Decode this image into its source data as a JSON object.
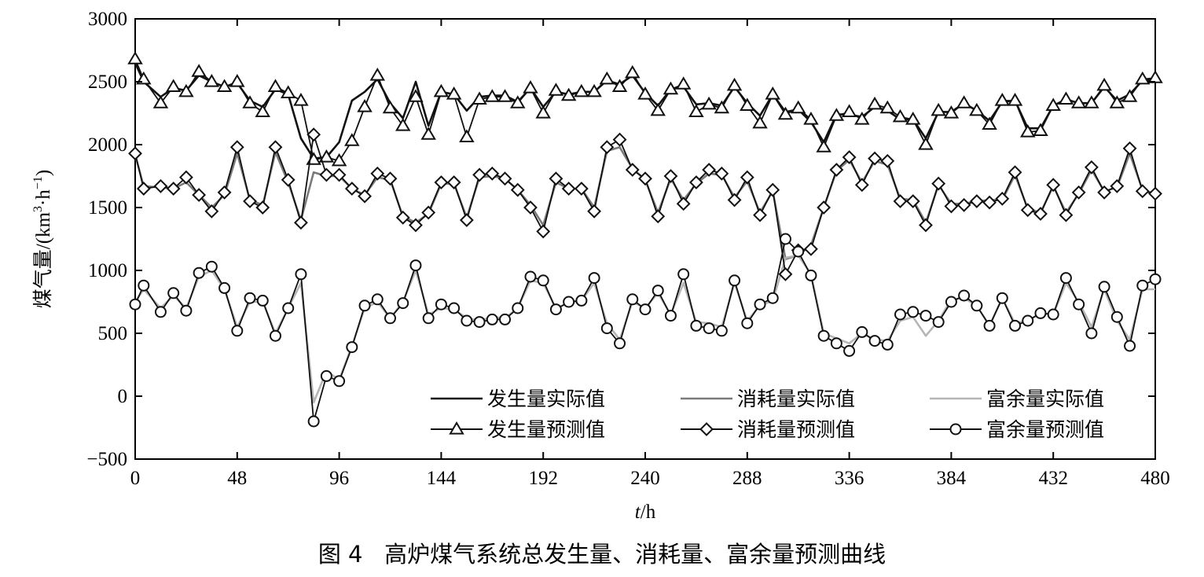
{
  "caption": "图 4   高炉煤气系统总发生量、消耗量、富余量预测曲线",
  "chart_data": {
    "type": "line",
    "title": "",
    "xlabel": "t/h",
    "xlabel_italic": "t",
    "xlabel_unit": "/h",
    "ylabel": "煤气量/(km³·h⁻¹)",
    "ylabel_cn": "煤气量",
    "ylabel_unit": "/(km³·h⁻¹)",
    "xlim": [
      0,
      480
    ],
    "ylim": [
      -500,
      3000
    ],
    "xticks": [
      0,
      48,
      96,
      144,
      192,
      240,
      288,
      336,
      384,
      432,
      480
    ],
    "yticks": [
      -500,
      0,
      500,
      1000,
      1500,
      2000,
      2500,
      3000
    ],
    "ytick_labels": [
      "−500",
      "0",
      "500",
      "1000",
      "1500",
      "2000",
      "2500",
      "3000"
    ],
    "grid": false,
    "legend_position": "lower-right",
    "colors": {
      "generation": "#111111",
      "consumption": "#7a7a7a",
      "surplus": "#b5b5b5"
    },
    "x": [
      0,
      4,
      12,
      18,
      24,
      30,
      36,
      42,
      48,
      54,
      60,
      66,
      72,
      78,
      84,
      90,
      96,
      102,
      108,
      114,
      120,
      126,
      132,
      138,
      144,
      150,
      156,
      162,
      168,
      174,
      180,
      186,
      192,
      198,
      204,
      210,
      216,
      222,
      228,
      234,
      240,
      246,
      252,
      258,
      264,
      270,
      276,
      282,
      288,
      294,
      300,
      306,
      312,
      318,
      324,
      330,
      336,
      342,
      348,
      354,
      360,
      366,
      372,
      378,
      384,
      390,
      396,
      402,
      408,
      414,
      420,
      426,
      432,
      438,
      444,
      450,
      456,
      462,
      468,
      474,
      480
    ],
    "series": [
      {
        "name": "发生量实际值",
        "style": "line",
        "color": "#111111",
        "values": [
          2650,
          2500,
          2380,
          2450,
          2430,
          2550,
          2500,
          2460,
          2490,
          2350,
          2300,
          2440,
          2400,
          2050,
          1890,
          1900,
          2020,
          2350,
          2420,
          2520,
          2330,
          2210,
          2500,
          2150,
          2420,
          2400,
          2270,
          2380,
          2390,
          2390,
          2340,
          2450,
          2300,
          2420,
          2400,
          2420,
          2420,
          2510,
          2480,
          2550,
          2410,
          2310,
          2440,
          2460,
          2320,
          2330,
          2310,
          2460,
          2330,
          2230,
          2400,
          2260,
          2280,
          2180,
          2020,
          2240,
          2240,
          2220,
          2300,
          2270,
          2200,
          2200,
          2050,
          2260,
          2260,
          2330,
          2270,
          2190,
          2340,
          2350,
          2130,
          2130,
          2310,
          2360,
          2330,
          2330,
          2460,
          2350,
          2400,
          2510,
          2520
        ]
      },
      {
        "name": "消耗量实际值",
        "style": "line",
        "color": "#7a7a7a",
        "values": [
          1920,
          1670,
          1660,
          1650,
          1700,
          1600,
          1500,
          1600,
          1930,
          1560,
          1520,
          1940,
          1700,
          1400,
          1780,
          1750,
          1750,
          1650,
          1600,
          1740,
          1720,
          1430,
          1380,
          1450,
          1690,
          1690,
          1420,
          1740,
          1750,
          1730,
          1640,
          1520,
          1360,
          1700,
          1650,
          1650,
          1500,
          1950,
          1980,
          1810,
          1720,
          1460,
          1730,
          1560,
          1690,
          1770,
          1760,
          1580,
          1710,
          1460,
          1630,
          1090,
          1120,
          1200,
          1500,
          1790,
          1880,
          1700,
          1870,
          1840,
          1570,
          1560,
          1380,
          1680,
          1530,
          1530,
          1550,
          1560,
          1560,
          1760,
          1490,
          1460,
          1670,
          1460,
          1610,
          1800,
          1630,
          1660,
          1930,
          1640,
          1610
        ]
      },
      {
        "name": "富余量实际值",
        "style": "line",
        "color": "#b5b5b5",
        "values": [
          750,
          850,
          700,
          800,
          700,
          950,
          1000,
          850,
          550,
          750,
          750,
          500,
          700,
          900,
          -50,
          200,
          130,
          400,
          700,
          750,
          620,
          750,
          1000,
          650,
          700,
          690,
          620,
          600,
          630,
          620,
          700,
          920,
          900,
          700,
          740,
          760,
          900,
          580,
          450,
          750,
          700,
          820,
          650,
          900,
          590,
          580,
          550,
          900,
          600,
          720,
          760,
          1100,
          1120,
          970,
          500,
          460,
          420,
          500,
          450,
          440,
          600,
          630,
          480,
          600,
          770,
          780,
          720,
          560,
          780,
          580,
          600,
          660,
          650,
          900,
          750,
          550,
          850,
          600,
          450,
          850,
          850
        ]
      },
      {
        "name": "发生量预测值",
        "style": "triangle",
        "color": "#111111",
        "values": [
          2680,
          2520,
          2330,
          2460,
          2420,
          2580,
          2500,
          2460,
          2500,
          2330,
          2260,
          2460,
          2410,
          2350,
          1880,
          1900,
          1870,
          2030,
          2300,
          2550,
          2290,
          2150,
          2380,
          2080,
          2420,
          2400,
          2060,
          2360,
          2380,
          2380,
          2330,
          2450,
          2250,
          2430,
          2390,
          2420,
          2420,
          2520,
          2460,
          2570,
          2400,
          2270,
          2440,
          2480,
          2260,
          2320,
          2290,
          2470,
          2310,
          2170,
          2400,
          2240,
          2290,
          2200,
          1980,
          2230,
          2260,
          2200,
          2320,
          2290,
          2220,
          2200,
          2000,
          2270,
          2250,
          2330,
          2270,
          2160,
          2350,
          2350,
          2100,
          2110,
          2310,
          2360,
          2330,
          2330,
          2470,
          2330,
          2380,
          2520,
          2530
        ]
      },
      {
        "name": "消耗量预测值",
        "style": "diamond",
        "color": "#111111",
        "values": [
          1930,
          1650,
          1670,
          1650,
          1740,
          1600,
          1470,
          1620,
          1980,
          1550,
          1500,
          1980,
          1720,
          1380,
          2080,
          1760,
          1760,
          1650,
          1590,
          1770,
          1730,
          1420,
          1360,
          1460,
          1700,
          1700,
          1400,
          1760,
          1770,
          1730,
          1640,
          1500,
          1310,
          1730,
          1650,
          1650,
          1470,
          1980,
          2040,
          1800,
          1730,
          1430,
          1750,
          1530,
          1700,
          1800,
          1770,
          1560,
          1740,
          1440,
          1640,
          970,
          1160,
          1170,
          1500,
          1800,
          1900,
          1680,
          1890,
          1870,
          1550,
          1550,
          1360,
          1690,
          1510,
          1520,
          1550,
          1540,
          1570,
          1780,
          1480,
          1450,
          1680,
          1440,
          1620,
          1820,
          1620,
          1670,
          1970,
          1630,
          1610
        ]
      },
      {
        "name": "富余量预测值",
        "style": "circle",
        "color": "#111111",
        "values": [
          730,
          880,
          670,
          820,
          680,
          980,
          1030,
          860,
          520,
          780,
          760,
          480,
          700,
          970,
          -200,
          160,
          120,
          390,
          720,
          770,
          620,
          740,
          1040,
          620,
          730,
          700,
          600,
          590,
          610,
          610,
          700,
          950,
          920,
          690,
          750,
          760,
          940,
          540,
          420,
          770,
          690,
          840,
          640,
          970,
          560,
          540,
          520,
          920,
          580,
          730,
          780,
          1250,
          1150,
          960,
          480,
          420,
          360,
          510,
          440,
          410,
          650,
          670,
          640,
          590,
          750,
          800,
          720,
          560,
          780,
          560,
          600,
          660,
          650,
          940,
          730,
          500,
          870,
          630,
          400,
          880,
          930
        ]
      }
    ]
  }
}
